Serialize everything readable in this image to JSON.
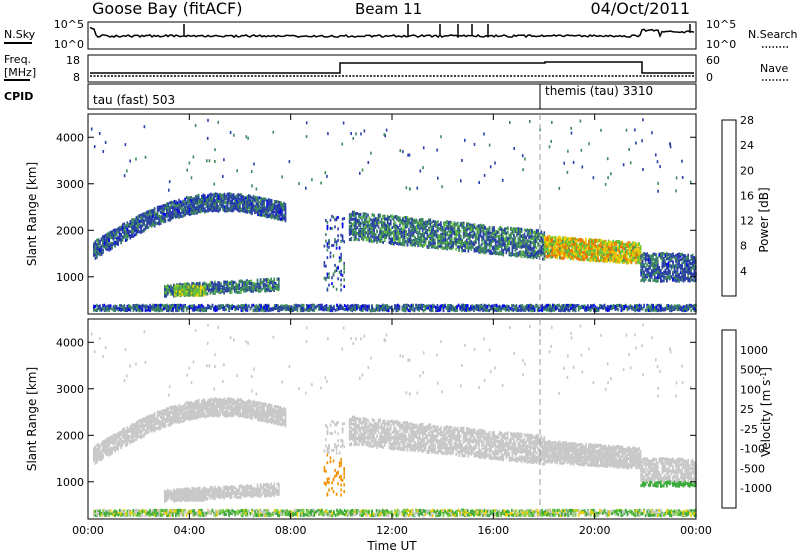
{
  "header": {
    "station": "Goose Bay (fitACF)",
    "beam": "Beam 11",
    "date": "04/Oct/2011"
  },
  "status_panels": {
    "nsky_label": "N.Sky",
    "nsky_ticks": [
      "10^5",
      "10^0"
    ],
    "nsearch_label": "N.Search",
    "nsearch_ticks": [
      "10^5",
      "10^0"
    ],
    "freq_label": "Freq.",
    "freq_unit": "[MHz]",
    "freq_ticks": [
      "18",
      "8"
    ],
    "nave_label": "Nave",
    "nave_ticks": [
      "60",
      "0"
    ],
    "cpid_label": "CPID",
    "cpid_segments": [
      {
        "label": "tau (fast) 503",
        "start_hour": 0,
        "end_hour": 18
      },
      {
        "label": "themis (tau) 3310",
        "start_hour": 18,
        "end_hour": 24
      }
    ]
  },
  "chart_data": [
    {
      "type": "heatmap",
      "quantity": "Power",
      "xlabel": "Time UT",
      "ylabel": "Slant Range [km]",
      "xlim": [
        0,
        24
      ],
      "ylim": [
        200,
        4500
      ],
      "x_ticks": [
        "00:00",
        "04:00",
        "08:00",
        "12:00",
        "16:00",
        "20:00",
        "00:00"
      ],
      "y_ticks": [
        "1000",
        "2000",
        "3000",
        "4000"
      ],
      "colorbar": {
        "label": "Power [dB]",
        "ticks": [
          "4",
          "8",
          "12",
          "16",
          "20",
          "24",
          "28"
        ],
        "colors": [
          "#0000ee",
          "#2a3ea8",
          "#3f8a5c",
          "#64c43c",
          "#f0d000",
          "#f07800",
          "#dd1a0a"
        ],
        "range": [
          0,
          32
        ]
      },
      "echo_regions": [
        {
          "t0": 0.0,
          "t1": 7.8,
          "r_center": "1200 to 2600 (arc)",
          "power": 8
        },
        {
          "t0": 3.2,
          "t1": 4.6,
          "r_center": 700,
          "power": 16
        },
        {
          "t0": 10.3,
          "t1": 18.0,
          "r_center": "2100 to 1600",
          "power": 10
        },
        {
          "t0": 18.0,
          "t1": 21.8,
          "r_center": 1500,
          "power": 22
        },
        {
          "t0": 21.8,
          "t1": 24.0,
          "r_center": 1200,
          "power": 8
        }
      ]
    },
    {
      "type": "heatmap",
      "quantity": "Velocity",
      "xlabel": "Time UT",
      "ylabel": "Slant Range [km]",
      "xlim": [
        0,
        24
      ],
      "ylim": [
        200,
        4500
      ],
      "x_ticks": [
        "00:00",
        "04:00",
        "08:00",
        "12:00",
        "16:00",
        "20:00",
        "00:00"
      ],
      "y_ticks": [
        "1000",
        "2000",
        "3000",
        "4000"
      ],
      "colorbar": {
        "label": "Velocity [m s^-1]",
        "ticks": [
          "1000",
          "500",
          "100",
          "25",
          "-25",
          "-100",
          "-500",
          "-1000"
        ],
        "colors": [
          "#1a3aa8",
          "#2f7a6a",
          "#3aaa3a",
          "#7ad040",
          "#c8c8c8",
          "#f0d000",
          "#f09000",
          "#f05000",
          "#dd1a0a"
        ]
      },
      "echo_regions": [
        {
          "t0": 0.0,
          "t1": 7.8,
          "r_center": "1200 to 2600 (arc)",
          "velocity": 0
        },
        {
          "t0": 9.3,
          "t1": 10.0,
          "r_center": 1200,
          "velocity": -300
        },
        {
          "t0": 10.3,
          "t1": 22.0,
          "r_center": "2100 to 1600",
          "velocity": 0
        },
        {
          "t0": 22.0,
          "t1": 24.0,
          "r_center": 1000,
          "velocity": 100
        }
      ]
    }
  ]
}
